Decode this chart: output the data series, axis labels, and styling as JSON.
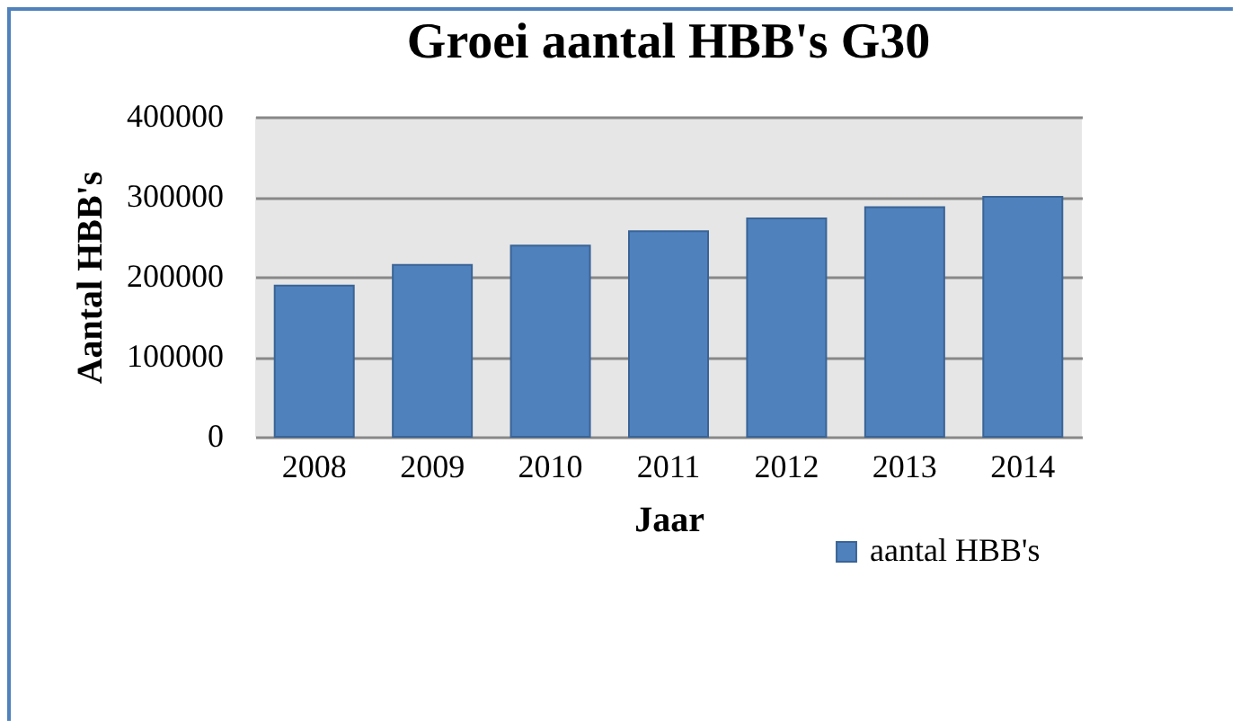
{
  "chart_data": {
    "type": "bar",
    "title": "Groei aantal HBB's G30",
    "xlabel": "Jaar",
    "ylabel": "Aantal HBB's",
    "categories": [
      "2008",
      "2009",
      "2010",
      "2011",
      "2012",
      "2013",
      "2014"
    ],
    "series": [
      {
        "name": "aantal HBB's",
        "color": "#4f81bd",
        "values": [
          189000,
          215000,
          239000,
          257000,
          273000,
          287000,
          300000
        ]
      }
    ],
    "ylim": [
      0,
      400000
    ],
    "yticks": [
      0,
      100000,
      200000,
      300000,
      400000
    ],
    "grid": true,
    "legend": "bottom right"
  }
}
